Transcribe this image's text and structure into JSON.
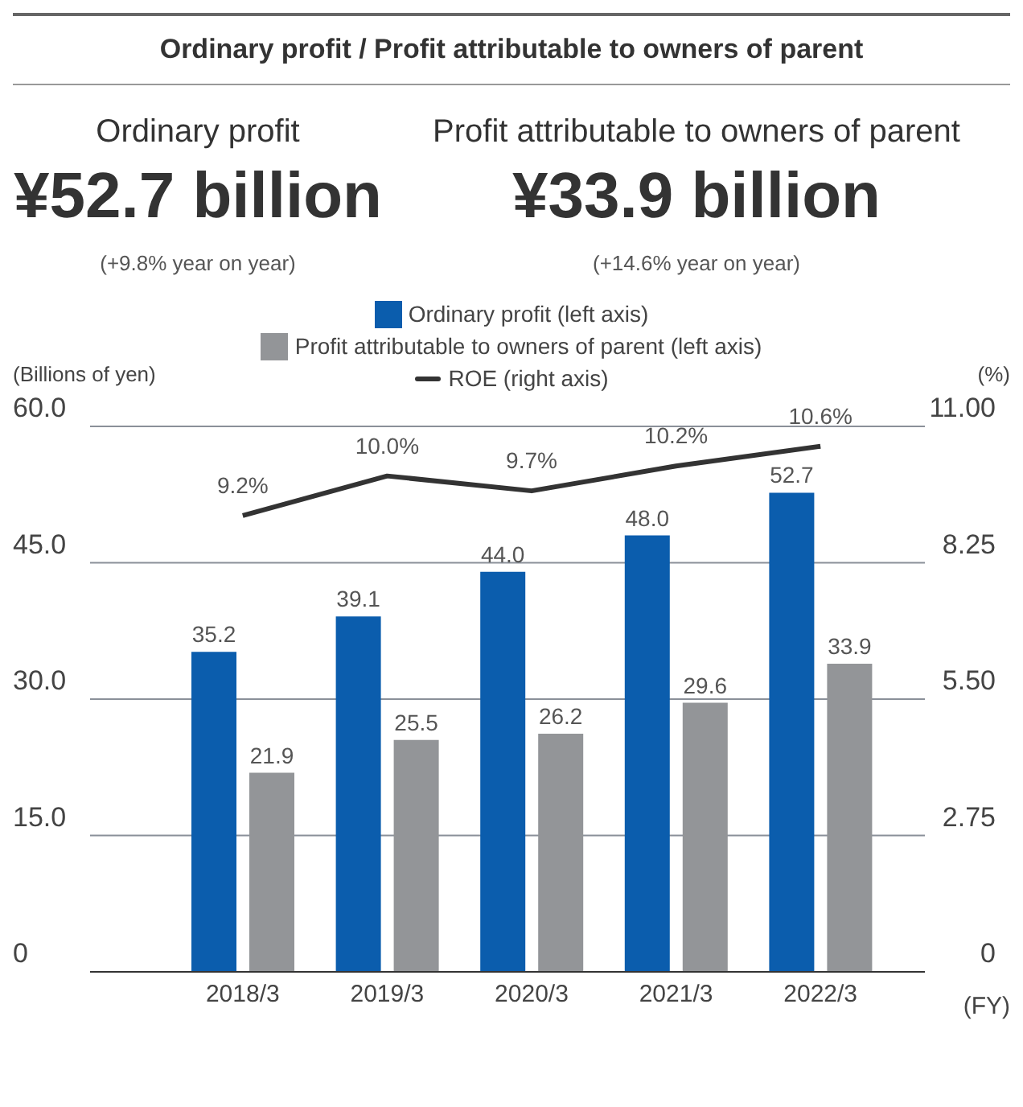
{
  "chart_data": {
    "type": "bar",
    "title": "Ordinary profit / Profit attributable to owners of parent",
    "annotations": [
      "Ordinary profit",
      "Profit attributable to owners of parent",
      "¥52.7 billion",
      "¥33.9 billion",
      "(+9.8% year on year)",
      "(+14.6% year on year)"
    ],
    "categories": [
      "2018/3",
      "2019/3",
      "2020/3",
      "2021/3",
      "2022/3"
    ],
    "xlabel": "(FY)",
    "ylabel": "(Billions of yen)",
    "y2label": "(%)",
    "series": [
      {
        "name": "Ordinary profit (left axis)",
        "color": "#0b5dad",
        "values": [
          35.2,
          39.1,
          44.0,
          48.0,
          52.7
        ],
        "value_labels": [
          "35.2",
          "39.1",
          "44.0",
          "48.0",
          "52.7"
        ]
      },
      {
        "name": "Profit attributable to owners of parent (left axis)",
        "color": "#939598",
        "values": [
          21.9,
          25.5,
          26.2,
          29.6,
          33.9
        ],
        "value_labels": [
          "21.9",
          "25.5",
          "26.2",
          "29.6",
          "33.9"
        ]
      },
      {
        "name": "ROE (right axis)",
        "type": "line",
        "axis": "y2",
        "color": "#333333",
        "values": [
          9.2,
          10.0,
          9.7,
          10.2,
          10.6
        ],
        "value_labels": [
          "9.2%",
          "10.0%",
          "9.7%",
          "10.2%",
          "10.6%"
        ]
      }
    ],
    "ylim": [
      0,
      60
    ],
    "yticks": [
      0,
      {
        "value": 15,
        "label": "15.0"
      },
      {
        "value": 30,
        "label": "30.0"
      },
      {
        "value": 45,
        "label": "45.0"
      },
      {
        "value": 60,
        "label": "60.0"
      }
    ],
    "y2lim": [
      0,
      11
    ],
    "y2ticks": [
      0,
      {
        "value": 2.75,
        "label": "2.75"
      },
      {
        "value": 5.5,
        "label": "5.50"
      },
      {
        "value": 8.25,
        "label": "8.25"
      },
      {
        "value": 11,
        "label": "11.00"
      }
    ],
    "grid": "y",
    "legend": "top",
    "marker": "none",
    "line_style": "solid"
  }
}
